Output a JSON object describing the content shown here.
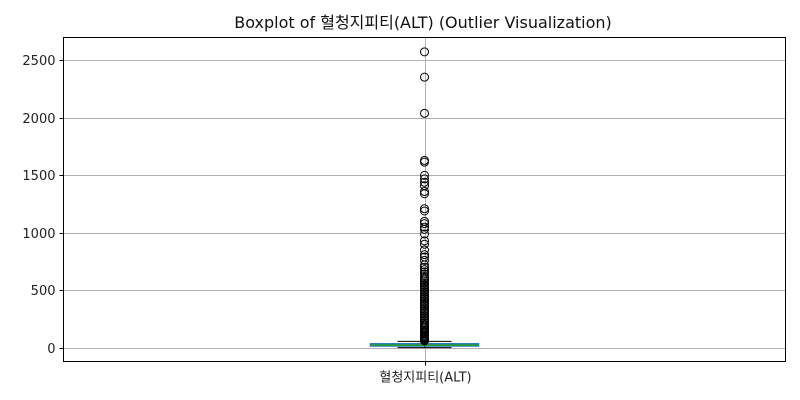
{
  "chart_data": {
    "type": "box",
    "title": "Boxplot of 혈청지피티(ALT) (Outlier Visualization)",
    "categories": [
      "혈청지피티(ALT)"
    ],
    "ylim": [
      -120,
      2700
    ],
    "yticks": [
      0,
      500,
      1000,
      1500,
      2000,
      2500
    ],
    "grid": true,
    "colors": {
      "box": "#1f77b4",
      "median": "#2ca02c",
      "whisker": "#000000",
      "outlier": "#000000"
    },
    "box": {
      "q1": 15,
      "median": 22,
      "q3": 34,
      "whisker_low": 1,
      "whisker_high": 55
    },
    "outliers": [
      2575,
      2355,
      2040,
      1630,
      1615,
      1500,
      1470,
      1440,
      1410,
      1360,
      1340,
      1210,
      1190,
      1100,
      1080,
      1050,
      1030,
      990,
      930,
      900,
      850,
      810,
      790,
      760,
      720,
      700,
      680,
      660,
      640,
      620,
      605,
      590,
      575,
      560,
      545,
      530,
      515,
      500,
      485,
      470,
      455,
      440,
      425,
      410,
      395,
      380,
      365,
      350,
      335,
      320,
      305,
      290,
      275,
      260,
      245,
      230,
      215,
      200,
      188,
      176,
      164,
      152,
      140,
      130,
      120,
      110,
      100,
      92,
      84,
      76,
      70,
      64,
      60
    ]
  }
}
